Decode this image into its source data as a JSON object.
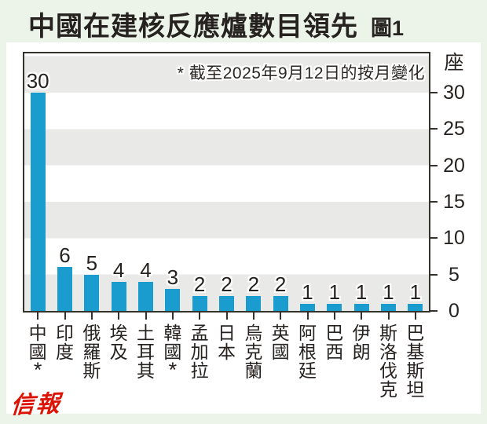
{
  "header": {
    "title": "中國在建核反應爐數目領先",
    "figure_label": "圖1"
  },
  "footer": {
    "logo_text": "信報"
  },
  "chart_data": {
    "type": "bar",
    "title": "中國在建核反應爐數目領先",
    "unit_label": "座",
    "annotation": "* 截至2025年9月12日的按月變化",
    "categories": [
      "中國*",
      "印度",
      "俄羅斯",
      "埃及",
      "土耳其",
      "韓國*",
      "孟加拉",
      "日本",
      "烏克蘭",
      "英國",
      "阿根廷",
      "巴西",
      "伊朗",
      "斯洛伐克",
      "巴基斯坦"
    ],
    "values": [
      30,
      6,
      5,
      4,
      4,
      3,
      2,
      2,
      2,
      2,
      1,
      1,
      1,
      1,
      1
    ],
    "yticks": [
      0,
      5,
      10,
      15,
      20,
      25,
      30
    ],
    "ylim": [
      0,
      35
    ],
    "grid": "horizontal-bands-every-5",
    "legend": "none",
    "colors": {
      "bar": "#1a9dce",
      "band_gray": "#e9e9e8",
      "plot_background": "#ffffff",
      "axis": "#35312d",
      "text": "#262220",
      "logo_red": "#dc1405",
      "page_background": "#ecf4ea"
    }
  }
}
